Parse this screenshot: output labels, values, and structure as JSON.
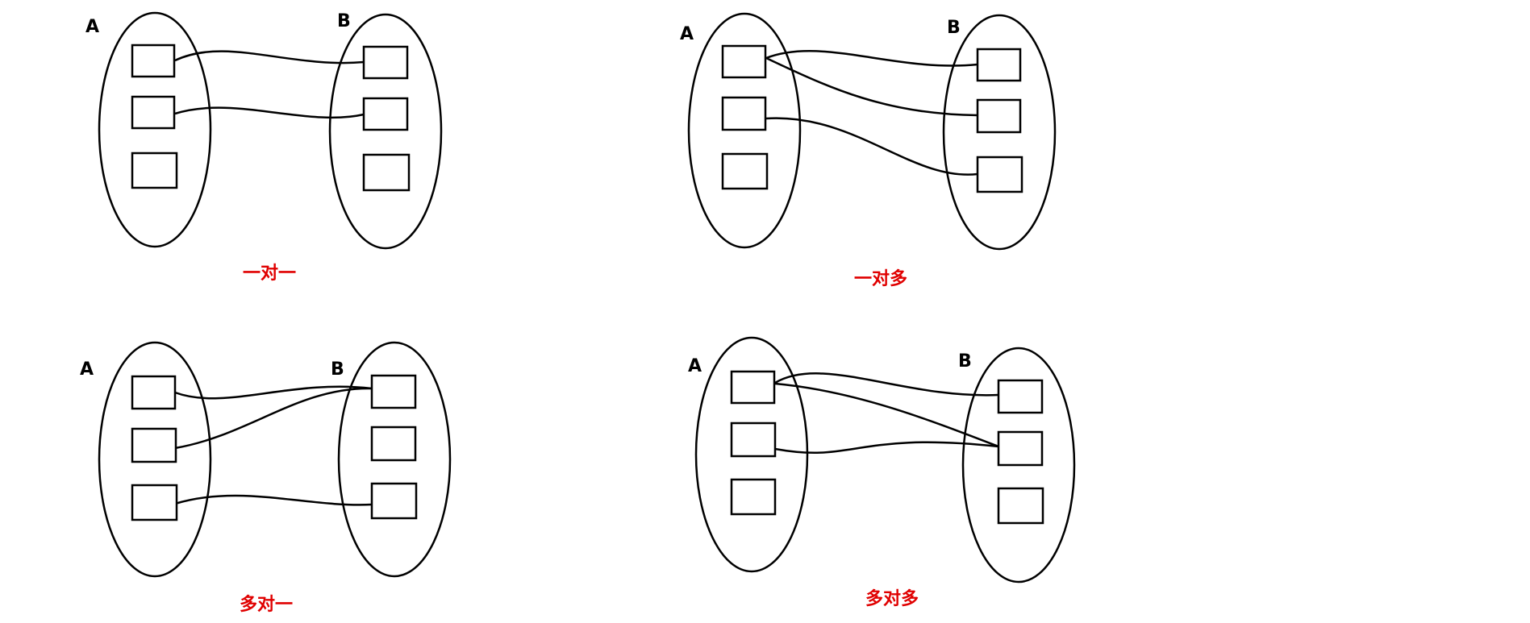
{
  "colors": {
    "line": "#000000",
    "caption": "#e00000",
    "background": "#ffffff"
  },
  "diagrams": [
    {
      "id": "one-to-one",
      "caption": "一对一",
      "set_a_label": "A",
      "set_b_label": "B",
      "set_a_items": 3,
      "set_b_items": 3,
      "connections": [
        {
          "from": 1,
          "to": 1
        },
        {
          "from": 2,
          "to": 2
        }
      ]
    },
    {
      "id": "one-to-many",
      "caption": "一对多",
      "set_a_label": "A",
      "set_b_label": "B",
      "set_a_items": 3,
      "set_b_items": 3,
      "connections": [
        {
          "from": 1,
          "to": 1
        },
        {
          "from": 1,
          "to": 2
        },
        {
          "from": 2,
          "to": 3
        }
      ]
    },
    {
      "id": "many-to-one",
      "caption": "多对一",
      "set_a_label": "A",
      "set_b_label": "B",
      "set_a_items": 3,
      "set_b_items": 3,
      "connections": [
        {
          "from": 1,
          "to": 1
        },
        {
          "from": 2,
          "to": 1
        },
        {
          "from": 3,
          "to": 3
        }
      ]
    },
    {
      "id": "many-to-many",
      "caption": "多对多",
      "set_a_label": "A",
      "set_b_label": "B",
      "set_a_items": 3,
      "set_b_items": 3,
      "connections": [
        {
          "from": 1,
          "to": 1
        },
        {
          "from": 1,
          "to": 2
        },
        {
          "from": 2,
          "to": 2
        }
      ]
    }
  ]
}
